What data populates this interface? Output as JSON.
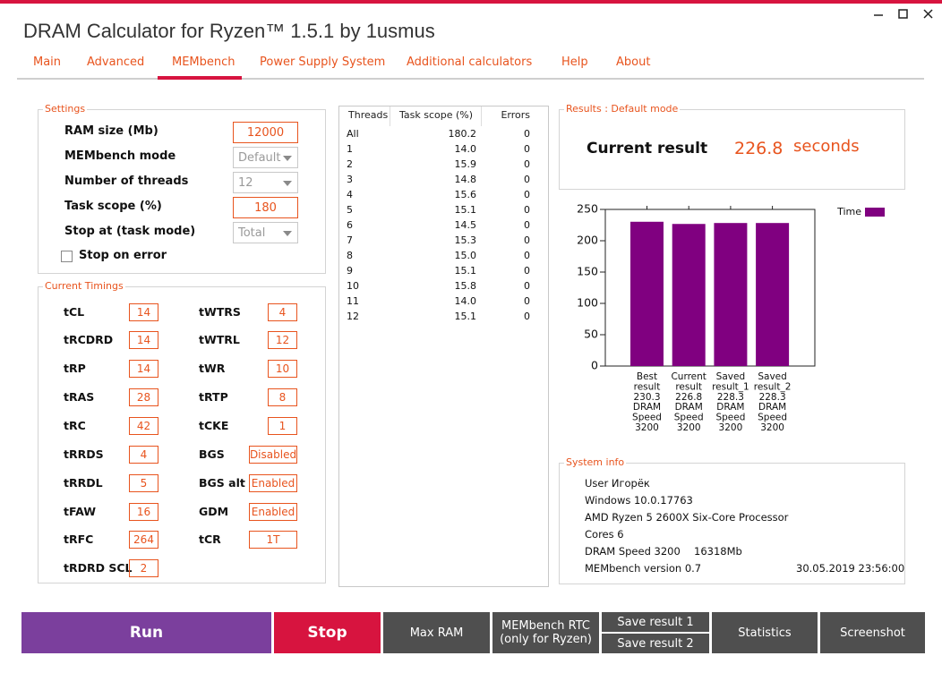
{
  "window": {
    "title": "DRAM Calculator for Ryzen™ 1.5.1 by 1usmus"
  },
  "tabs": [
    "Main",
    "Advanced",
    "MEMbench",
    "Power Supply System",
    "Additional calculators",
    "Help",
    "About"
  ],
  "settings": {
    "title": "Settings",
    "fields": [
      {
        "label": "RAM size (Mb)",
        "value": 12000
      },
      {
        "label": "MEMbench mode",
        "value": "Default"
      },
      {
        "label": "Number of threads",
        "value": 12
      },
      {
        "label": "Task scope (%)",
        "value": 180
      },
      {
        "label": "Stop at (task mode)",
        "value": "Total"
      }
    ],
    "stop_on_error": "Stop on error"
  },
  "timings": {
    "title": "Current Timings",
    "left": [
      {
        "label": "tCL",
        "value": 14
      },
      {
        "label": "tRCDRD",
        "value": 14
      },
      {
        "label": "tRP",
        "value": 14
      },
      {
        "label": "tRAS",
        "value": 28
      },
      {
        "label": "tRC",
        "value": 42
      },
      {
        "label": "tRRDS",
        "value": 4
      },
      {
        "label": "tRRDL",
        "value": 5
      },
      {
        "label": "tFAW",
        "value": 16
      },
      {
        "label": "tRFC",
        "value": 264
      },
      {
        "label": "tRDRD SCL",
        "value": 2
      }
    ],
    "right": [
      {
        "label": "tWTRS",
        "value": 4
      },
      {
        "label": "tWTRL",
        "value": 12
      },
      {
        "label": "tWR",
        "value": 10
      },
      {
        "label": "tRTP",
        "value": 8
      },
      {
        "label": "tCKE",
        "value": 1
      },
      {
        "label": "BGS",
        "value": "Disabled"
      },
      {
        "label": "BGS alt",
        "value": "Enabled"
      },
      {
        "label": "GDM",
        "value": "Enabled"
      },
      {
        "label": "tCR",
        "value": "1T"
      }
    ]
  },
  "threads_table": {
    "header": [
      "Threads",
      "Task scope (%)",
      "Errors"
    ],
    "rows": [
      [
        "All",
        "180.2",
        0
      ],
      [
        1,
        "14.0",
        0
      ],
      [
        2,
        "15.9",
        0
      ],
      [
        3,
        "14.8",
        0
      ],
      [
        4,
        "15.6",
        0
      ],
      [
        5,
        "15.1",
        0
      ],
      [
        6,
        "14.5",
        0
      ],
      [
        7,
        "15.3",
        0
      ],
      [
        8,
        "15.0",
        0
      ],
      [
        9,
        "15.1",
        0
      ],
      [
        10,
        "15.8",
        0
      ],
      [
        11,
        "14.0",
        0
      ],
      [
        12,
        "15.1",
        0
      ]
    ]
  },
  "results": {
    "title": "Results : Default mode",
    "label": "Current result",
    "value": 226.8,
    "unit": "seconds"
  },
  "chart_data": {
    "type": "bar",
    "categories": [
      [
        "Best",
        "result",
        "230.3",
        "DRAM",
        "Speed",
        "3200"
      ],
      [
        "Current",
        "result",
        "226.8",
        "DRAM",
        "Speed",
        "3200"
      ],
      [
        "Saved",
        "result_1",
        "228.3",
        "DRAM",
        "Speed",
        "3200"
      ],
      [
        "Saved",
        "result_2",
        "228.3",
        "DRAM",
        "Speed",
        "3200"
      ]
    ],
    "series": [
      {
        "name": "Time",
        "color": "#800080",
        "values": [
          230.3,
          226.8,
          228.3,
          228.3
        ]
      }
    ],
    "ylim": [
      0,
      250
    ],
    "yticks": [
      0,
      50,
      100,
      150,
      200,
      250
    ],
    "grid": false,
    "legend": "top-right"
  },
  "system_info": {
    "title": "System info",
    "rows": [
      [
        "User Игорёк"
      ],
      [
        "Windows 10.0.17763"
      ],
      [
        "AMD Ryzen 5 2600X Six-Core Processor"
      ],
      [
        "Cores 6"
      ],
      [
        "DRAM Speed 3200",
        "16318Mb"
      ],
      [
        "MEMbench version 0.7",
        "30.05.2019 23:56:00"
      ]
    ]
  },
  "buttons": {
    "run": "Run",
    "stop": "Stop",
    "max_ram": "Max RAM",
    "rtc": [
      "MEMbench RTC",
      "(only for Ryzen)"
    ],
    "save_1": "Save result 1",
    "save_2": "Save result 2",
    "statistics": "Statistics",
    "screenshot": "Screenshot"
  }
}
